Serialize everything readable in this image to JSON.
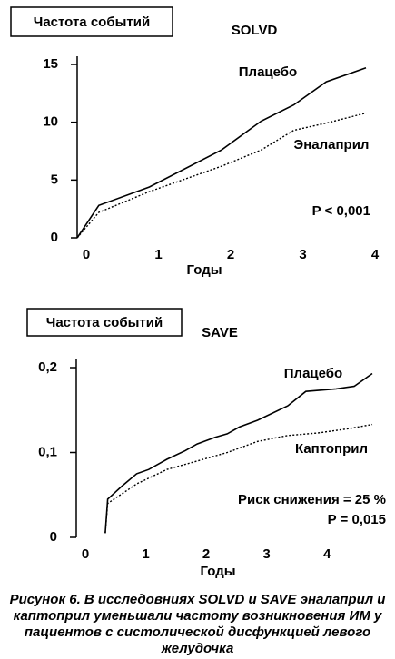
{
  "chart_data": [
    {
      "type": "line",
      "title": "SOLVD",
      "ylabel": "Частота событий",
      "xlabel": "Годы",
      "xlim": [
        0,
        4
      ],
      "xticks": [
        0,
        1,
        2,
        3,
        4
      ],
      "ylim": [
        0,
        15
      ],
      "yticks": [
        0,
        5,
        10,
        15
      ],
      "annotations": [
        "P < 0,001"
      ],
      "series": [
        {
          "name": "Плацебо",
          "color": "#000000",
          "line_style": "solid",
          "x": [
            0,
            0.3,
            1,
            2,
            2.55,
            3,
            3.45,
            4
          ],
          "values": [
            0,
            2.8,
            4.4,
            7.6,
            10.1,
            11.5,
            13.5,
            14.7
          ]
        },
        {
          "name": "Эналаприл",
          "color": "#000000",
          "line_style": "dotted",
          "x": [
            0,
            0.3,
            1,
            2,
            2.55,
            3,
            3.5,
            4
          ],
          "values": [
            0,
            2.2,
            4,
            6.2,
            7.6,
            9.3,
            10,
            10.8
          ]
        }
      ]
    },
    {
      "type": "line",
      "title": "SAVE",
      "ylabel": "Частота событий",
      "xlabel": "Годы",
      "xlim": [
        0,
        4.9
      ],
      "xticks": [
        0,
        1,
        2,
        3,
        4
      ],
      "ylim": [
        0,
        0.2
      ],
      "yticks": [
        0,
        {
          "value": 0.1,
          "label": "0,1"
        },
        {
          "value": 0.2,
          "label": "0,2"
        }
      ],
      "annotations": [
        "Риск снижения = 25 %",
        "P = 0,015"
      ],
      "series": [
        {
          "name": "Плацебо",
          "color": "#000000",
          "line_style": "solid",
          "x": [
            0.48,
            0.52,
            0.75,
            1,
            1.2,
            1.5,
            1.8,
            2,
            2.3,
            2.5,
            2.7,
            3,
            3.5,
            3.8,
            4.3,
            4.6,
            4.9
          ],
          "values": [
            0.005,
            0.045,
            0.06,
            0.075,
            0.08,
            0.092,
            0.102,
            0.11,
            0.118,
            0.122,
            0.13,
            0.138,
            0.155,
            0.172,
            0.175,
            0.178,
            0.193
          ]
        },
        {
          "name": "Каптоприл",
          "color": "#000000",
          "line_style": "dotted",
          "x": [
            0.48,
            0.52,
            1,
            1.5,
            2,
            2.5,
            3,
            3.5,
            4,
            4.5,
            4.9
          ],
          "values": [
            0.005,
            0.04,
            0.063,
            0.08,
            0.09,
            0.1,
            0.113,
            0.12,
            0.123,
            0.128,
            0.133
          ]
        }
      ]
    }
  ],
  "caption": "Рисунок 6. В исследовниях SOLVD и SAVE эналаприл и каптоприл уменьшали частоту возникновения ИМ у пациентов с систолической дисфункцией левого желудочка"
}
